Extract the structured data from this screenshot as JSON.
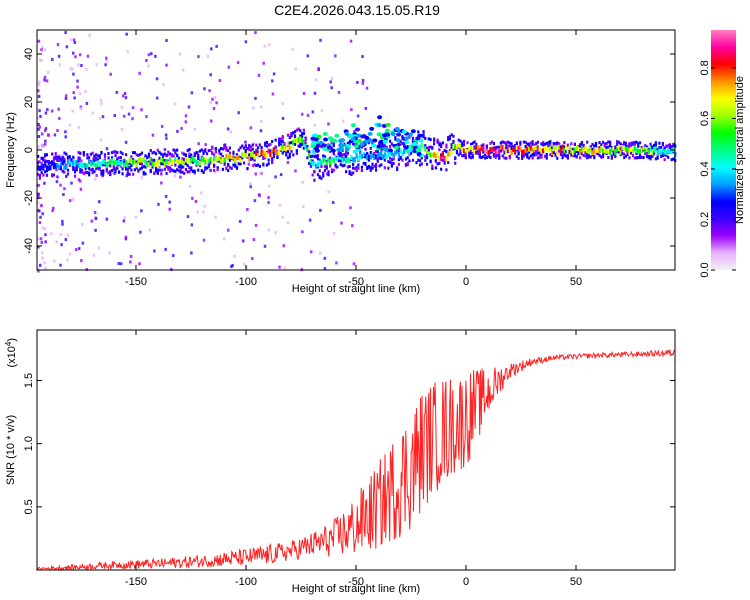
{
  "title": "C2E4.2026.043.15.05.R19",
  "chart_data": [
    {
      "type": "heatmap",
      "panel": "spectrogram",
      "xlabel": "Height of straight line (km)",
      "ylabel": "Frequency (Hz)",
      "xlim": [
        -195,
        95
      ],
      "ylim": [
        -50,
        50
      ],
      "xticks": [
        -150,
        -100,
        -50,
        0,
        50
      ],
      "xtick_labels": [
        "-150",
        "-100",
        "-50",
        "0",
        "50"
      ],
      "yticks": [
        -40,
        -20,
        0,
        20,
        40
      ],
      "ytick_labels": [
        "-40",
        "-20",
        "0",
        "20",
        "40"
      ],
      "colorbar": {
        "label": "Normalized spectral amplitude",
        "range": [
          0,
          0.95
        ],
        "ticks": [
          0.0,
          0.2,
          0.4,
          0.6,
          0.8
        ],
        "tick_labels": [
          "0.0",
          "0.2",
          "0.4",
          "0.6",
          "0.8"
        ],
        "colors": [
          "#f2f2f2",
          "#e8b0ff",
          "#9b00ff",
          "#3a00ff",
          "#0000ff",
          "#00a0ff",
          "#00ffff",
          "#00ff80",
          "#00ff00",
          "#a0ff00",
          "#ffff00",
          "#ff9000",
          "#ff0000",
          "#ff00a0",
          "#ff80c0"
        ]
      },
      "ridge": {
        "x": [
          -195,
          -180,
          -160,
          -140,
          -120,
          -100,
          -90,
          -80,
          -75,
          -70,
          -60,
          -50,
          -40,
          -30,
          -20,
          -15,
          -10,
          -5,
          0,
          10,
          20,
          40,
          60,
          80,
          95
        ],
        "freq": [
          -7,
          -6,
          -5.5,
          -5,
          -4.5,
          -3,
          -1.5,
          2,
          5,
          -6,
          -4,
          -3,
          -2,
          -1,
          1,
          -2,
          -3,
          1.5,
          0,
          0,
          0,
          0,
          0,
          0,
          -1
        ],
        "amplitude": [
          0.25,
          0.4,
          0.55,
          0.65,
          0.6,
          0.75,
          0.8,
          0.7,
          0.6,
          0.45,
          0.5,
          0.4,
          0.35,
          0.4,
          0.55,
          0.75,
          0.85,
          0.6,
          0.8,
          0.9,
          0.85,
          0.75,
          0.7,
          0.6,
          0.45
        ]
      },
      "upper_branch": {
        "x": [
          -70,
          -60,
          -50,
          -40,
          -30,
          -25,
          -20
        ],
        "freq": [
          2,
          5,
          8,
          10,
          8,
          6,
          3
        ]
      }
    },
    {
      "type": "line",
      "panel": "snr",
      "xlabel": "Height of straight line (km)",
      "ylabel": "SNR (10 * v/v)",
      "y_scale_label": "(x10",
      "y_scale_exponent": "4",
      "y_scale_suffix": ")",
      "xlim": [
        -195,
        95
      ],
      "ylim": [
        0,
        1.9
      ],
      "xticks": [
        -150,
        -100,
        -50,
        0,
        50
      ],
      "xtick_labels": [
        "-150",
        "-100",
        "-50",
        "0",
        "50"
      ],
      "yticks": [
        0.5,
        1.0,
        1.5
      ],
      "ytick_labels": [
        "0.5",
        "1.0",
        "1.5"
      ],
      "color": "#ff2222",
      "envelope": {
        "x": [
          -195,
          -180,
          -160,
          -140,
          -120,
          -100,
          -90,
          -80,
          -70,
          -60,
          -50,
          -45,
          -40,
          -35,
          -30,
          -25,
          -20,
          -15,
          -10,
          -5,
          0,
          5,
          10,
          15,
          20,
          30,
          40,
          60,
          80,
          95
        ],
        "mean": [
          0.01,
          0.02,
          0.04,
          0.05,
          0.07,
          0.1,
          0.12,
          0.15,
          0.2,
          0.25,
          0.35,
          0.42,
          0.5,
          0.6,
          0.7,
          0.8,
          0.95,
          1.05,
          1.1,
          1.15,
          1.2,
          1.3,
          1.4,
          1.5,
          1.58,
          1.65,
          1.68,
          1.7,
          1.71,
          1.72
        ],
        "spread": [
          0.01,
          0.02,
          0.03,
          0.04,
          0.05,
          0.07,
          0.08,
          0.08,
          0.1,
          0.15,
          0.25,
          0.3,
          0.35,
          0.4,
          0.45,
          0.5,
          0.5,
          0.45,
          0.45,
          0.4,
          0.4,
          0.3,
          0.2,
          0.12,
          0.06,
          0.03,
          0.02,
          0.02,
          0.02,
          0.03
        ]
      }
    }
  ]
}
